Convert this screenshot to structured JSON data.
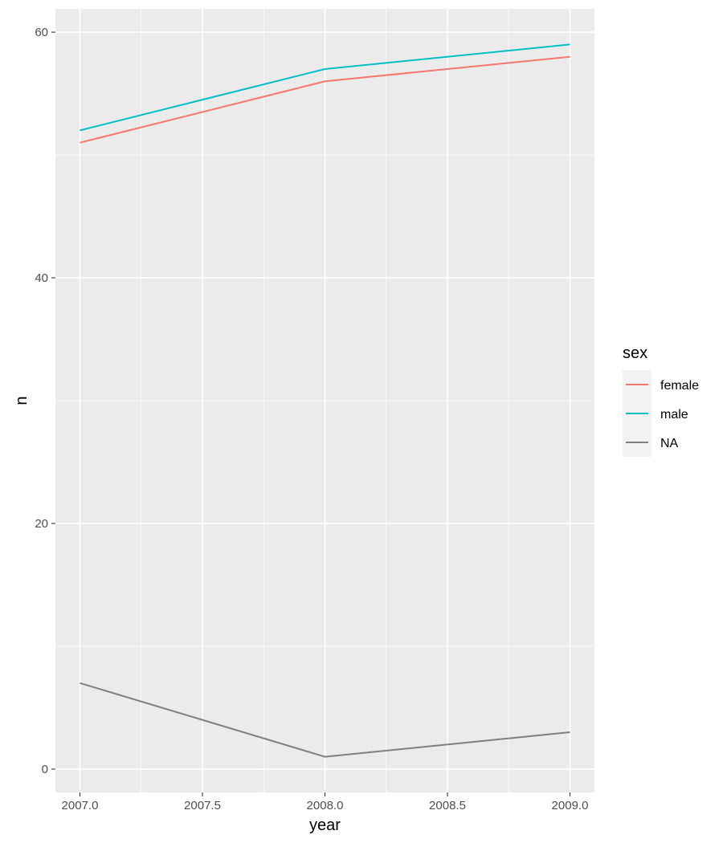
{
  "chart_data": {
    "type": "line",
    "xlabel": "year",
    "ylabel": "n",
    "xlim": [
      2006.9,
      2009.1
    ],
    "ylim": [
      -1.9,
      61.9
    ],
    "x_ticks": [
      2007.0,
      2007.5,
      2008.0,
      2008.5,
      2009.0
    ],
    "x_tick_labels": [
      "2007.0",
      "2007.5",
      "2008.0",
      "2008.5",
      "2009.0"
    ],
    "x_minor_ticks": [
      2007.25,
      2007.75,
      2008.25,
      2008.75
    ],
    "y_ticks": [
      0,
      20,
      40,
      60
    ],
    "y_tick_labels": [
      "0",
      "20",
      "40",
      "60"
    ],
    "y_minor_ticks": [
      10,
      30,
      50
    ],
    "grid": true,
    "legend": {
      "title": "sex",
      "placement": "right"
    },
    "series": [
      {
        "name": "female",
        "color": "#F8766D",
        "x": [
          2007,
          2008,
          2009
        ],
        "y": [
          51,
          56,
          58
        ]
      },
      {
        "name": "male",
        "color": "#00BFC4",
        "x": [
          2007,
          2008,
          2009
        ],
        "y": [
          52,
          57,
          59
        ]
      },
      {
        "name": "NA",
        "color": "#7F7F7F",
        "x": [
          2007,
          2008,
          2009
        ],
        "y": [
          7,
          1,
          3
        ]
      }
    ]
  }
}
